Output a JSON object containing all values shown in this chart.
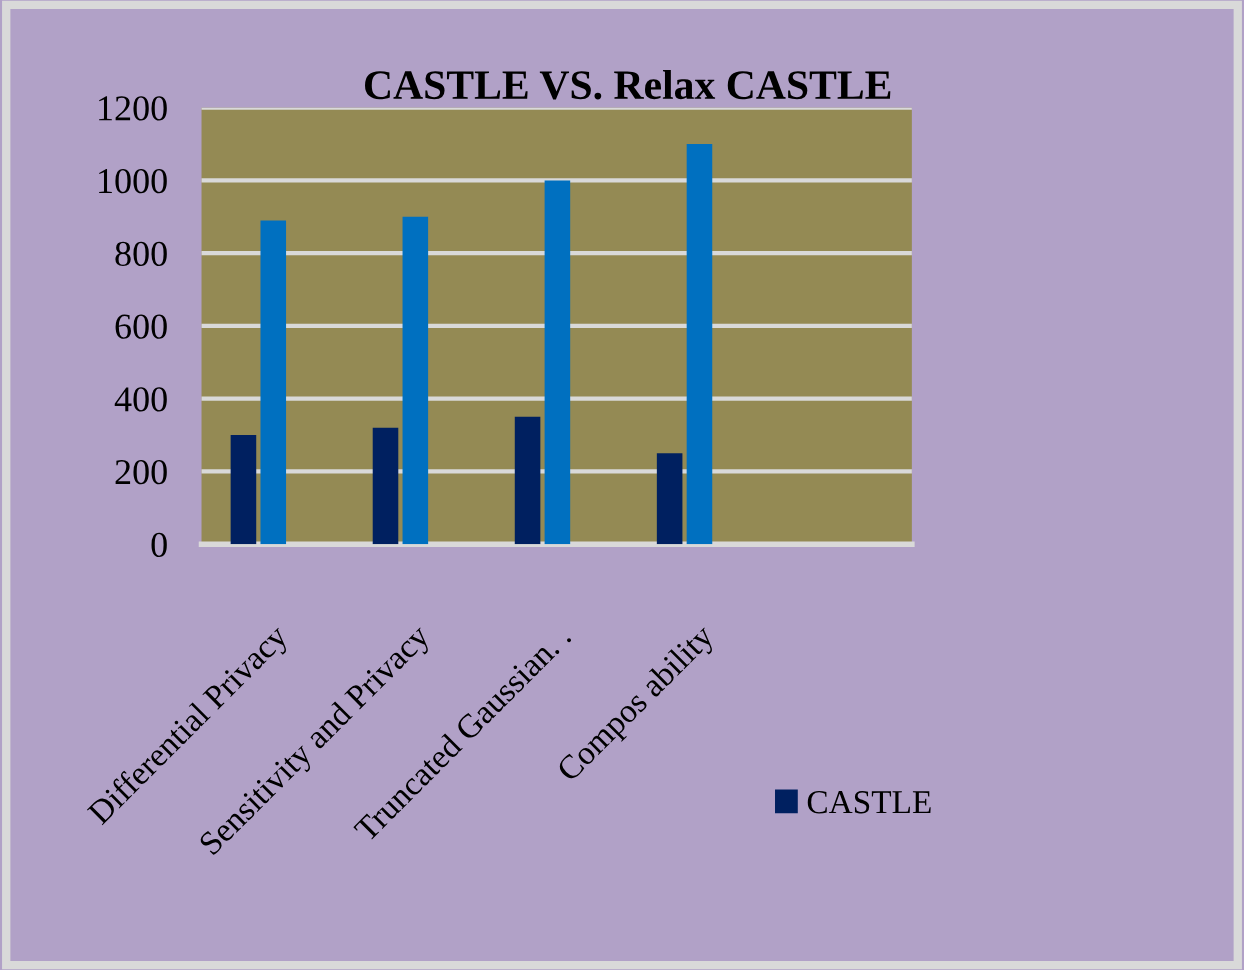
{
  "chart_data": {
    "type": "bar",
    "title": "CASTLE VS. Relax CASTLE",
    "categories": [
      "Differential Privacy",
      "Sensitivity and Privacy",
      "Truncated Gaussian. .",
      "Compos ability",
      null
    ],
    "series": [
      {
        "name": "CASTLE",
        "color": "#002060",
        "values": [
          300,
          320,
          350,
          250,
          null
        ]
      },
      {
        "color": "#0070c0",
        "values": [
          890,
          900,
          1000,
          1100,
          null
        ]
      }
    ],
    "ylim": [
      0,
      1200
    ],
    "yticks": [
      0,
      200,
      400,
      600,
      800,
      1000,
      1200
    ],
    "grid": "y",
    "legend": "bottom right"
  }
}
